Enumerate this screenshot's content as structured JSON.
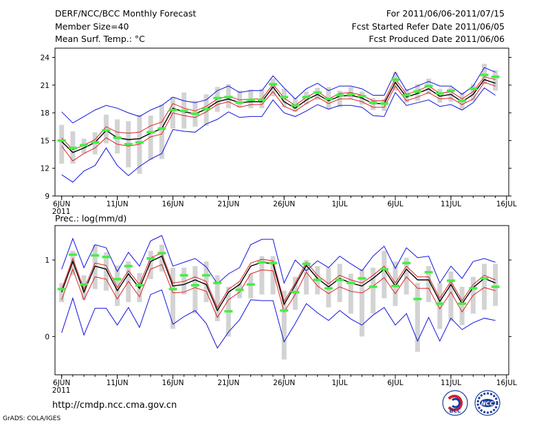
{
  "header": {
    "title": "DERF/NCC/BCC Monthly Forecast",
    "member_size": "Member Size=40",
    "variable": "Mean Surf. Temp.: °C",
    "forecast_period": "For 2011/06/06-2011/07/15",
    "refer_date": "Fcst Started Refer Date 2011/06/05",
    "produced_date": "Fcst Produced Date 2011/06/06"
  },
  "colors": {
    "box": "#d3d3d3",
    "median": "#44ee44",
    "mean": "#000000",
    "inner_band": "#dd2222",
    "outer_band": "#1111dd",
    "frame": "#000000"
  },
  "footer": {
    "url": "http://cmdp.ncc.cma.gov.cn",
    "credit": "GrADS: COLA/IGES",
    "logo_left_text": "BCC",
    "logo_right_text": "NCC"
  },
  "chart_data": [
    {
      "type": "line",
      "title": "Mean Surf. Temp.: °C",
      "ylim": [
        9,
        25
      ],
      "yticks": [
        9,
        12,
        15,
        18,
        21,
        24
      ],
      "xticks": [
        {
          "day": 0,
          "label": "6JUN",
          "sub": "2011"
        },
        {
          "day": 5,
          "label": "11JUN"
        },
        {
          "day": 10,
          "label": "16JUN"
        },
        {
          "day": 15,
          "label": "21JUN"
        },
        {
          "day": 20,
          "label": "26JUN"
        },
        {
          "day": 25,
          "label": "1JUL"
        },
        {
          "day": 30,
          "label": "6JUL"
        },
        {
          "day": 35,
          "label": "11JUL"
        },
        {
          "day": 40,
          "label": "16JUL"
        }
      ],
      "series": [
        {
          "name": "upper",
          "values": [
            18.1,
            16.9,
            17.6,
            18.3,
            18.8,
            18.5,
            18.0,
            17.6,
            18.3,
            18.8,
            19.7,
            19.3,
            19.1,
            19.4,
            20.4,
            20.9,
            20.2,
            20.4,
            20.4,
            22.0,
            20.7,
            19.5,
            20.6,
            21.2,
            20.4,
            20.9,
            20.9,
            20.6,
            19.9,
            19.9,
            22.4,
            20.4,
            20.9,
            21.4,
            20.9,
            20.9,
            20.0,
            20.9,
            22.9,
            22.4
          ]
        },
        {
          "name": "inner_upper",
          "values": [
            15.3,
            14.0,
            14.5,
            15.1,
            16.5,
            15.9,
            15.8,
            15.9,
            16.6,
            17.0,
            19.0,
            18.5,
            18.2,
            18.7,
            19.5,
            19.8,
            19.4,
            19.5,
            19.5,
            21.1,
            19.6,
            18.8,
            19.7,
            20.3,
            19.5,
            20.1,
            20.2,
            19.9,
            19.3,
            19.3,
            21.7,
            20.0,
            20.4,
            20.9,
            20.1,
            20.3,
            19.5,
            20.3,
            21.9,
            21.6
          ]
        },
        {
          "name": "mean",
          "values": [
            14.9,
            13.7,
            14.2,
            14.8,
            16.1,
            15.3,
            15.1,
            15.2,
            15.8,
            16.3,
            18.5,
            18.1,
            17.9,
            18.4,
            19.2,
            19.5,
            19.1,
            19.2,
            19.2,
            20.8,
            19.2,
            18.5,
            19.4,
            20.0,
            19.3,
            19.8,
            19.9,
            19.6,
            19.0,
            19.0,
            21.3,
            19.7,
            20.1,
            20.6,
            19.8,
            20.0,
            19.2,
            20.0,
            21.6,
            21.2
          ]
        },
        {
          "name": "inner_lower",
          "values": [
            14.4,
            12.8,
            13.6,
            14.2,
            15.3,
            14.6,
            14.4,
            14.6,
            15.4,
            15.7,
            18.0,
            17.7,
            17.5,
            18.1,
            18.9,
            19.2,
            18.6,
            18.9,
            18.9,
            20.3,
            18.7,
            18.2,
            19.0,
            19.7,
            19.0,
            19.5,
            19.5,
            19.2,
            18.6,
            18.6,
            20.9,
            19.3,
            19.7,
            20.2,
            19.5,
            19.6,
            18.9,
            19.5,
            21.3,
            20.9
          ]
        },
        {
          "name": "lower",
          "values": [
            11.3,
            10.5,
            11.7,
            12.3,
            14.2,
            12.3,
            11.2,
            12.2,
            13.0,
            13.6,
            16.2,
            16.0,
            15.9,
            16.8,
            17.3,
            18.1,
            17.5,
            17.6,
            17.6,
            19.4,
            18.0,
            17.6,
            18.2,
            18.9,
            18.4,
            18.8,
            18.8,
            18.6,
            17.7,
            17.6,
            20.2,
            18.8,
            19.1,
            19.4,
            18.7,
            18.9,
            18.3,
            19.1,
            20.7,
            19.9
          ]
        }
      ],
      "median": [
        15.0,
        14.2,
        14.5,
        14.8,
        16.1,
        15.3,
        14.6,
        14.8,
        15.9,
        16.3,
        18.3,
        18.2,
        17.9,
        18.4,
        19.6,
        19.7,
        19.1,
        19.4,
        19.4,
        21.1,
        19.7,
        18.8,
        19.7,
        20.2,
        19.5,
        19.9,
        20.0,
        19.8,
        19.1,
        19.0,
        21.6,
        19.9,
        20.3,
        20.9,
        20.1,
        20.4,
        19.3,
        20.6,
        22.1,
        21.9
      ],
      "boxes": [
        [
          12.5,
          16.7
        ],
        [
          12.5,
          16.0
        ],
        [
          13.6,
          15.2
        ],
        [
          13.5,
          15.9
        ],
        [
          14.7,
          17.8
        ],
        [
          13.6,
          17.3
        ],
        [
          12.1,
          17.1
        ],
        [
          11.4,
          17.8
        ],
        [
          12.9,
          17.7
        ],
        [
          13.0,
          18.9
        ],
        [
          16.3,
          19.7
        ],
        [
          16.3,
          20.2
        ],
        [
          16.5,
          19.3
        ],
        [
          16.6,
          20.0
        ],
        [
          18.1,
          20.8
        ],
        [
          18.5,
          21.1
        ],
        [
          18.6,
          20.4
        ],
        [
          18.5,
          20.5
        ],
        [
          18.5,
          20.6
        ],
        [
          19.8,
          21.7
        ],
        [
          18.6,
          20.6
        ],
        [
          18.1,
          19.6
        ],
        [
          18.9,
          20.3
        ],
        [
          19.4,
          20.7
        ],
        [
          18.4,
          20.8
        ],
        [
          18.6,
          20.4
        ],
        [
          19.5,
          20.8
        ],
        [
          18.9,
          20.3
        ],
        [
          18.3,
          19.6
        ],
        [
          18.2,
          19.5
        ],
        [
          20.4,
          22.4
        ],
        [
          19.1,
          20.6
        ],
        [
          19.3,
          21.1
        ],
        [
          20.0,
          21.7
        ],
        [
          19.1,
          20.6
        ],
        [
          19.2,
          20.8
        ],
        [
          18.4,
          20.2
        ],
        [
          19.3,
          21.1
        ],
        [
          21.1,
          23.3
        ],
        [
          20.4,
          22.6
        ]
      ]
    },
    {
      "type": "line",
      "title": "Prec.: log(mm/d)",
      "ylim": [
        -0.5,
        1.45
      ],
      "yticks": [
        0,
        1
      ],
      "xticks": [
        {
          "day": 0,
          "label": "6JUN",
          "sub": "2011"
        },
        {
          "day": 5,
          "label": "11JUN"
        },
        {
          "day": 10,
          "label": "16JUN"
        },
        {
          "day": 15,
          "label": "21JUN"
        },
        {
          "day": 20,
          "label": "26JUN"
        },
        {
          "day": 25,
          "label": "1JUL"
        },
        {
          "day": 30,
          "label": "6JUL"
        },
        {
          "day": 35,
          "label": "11JUL"
        },
        {
          "day": 40,
          "label": "16JUL"
        }
      ],
      "series": [
        {
          "name": "upper",
          "values": [
            0.88,
            1.28,
            0.9,
            1.2,
            1.16,
            0.85,
            1.1,
            0.92,
            1.25,
            1.32,
            0.92,
            0.97,
            1.02,
            0.91,
            0.69,
            0.82,
            0.9,
            1.2,
            1.27,
            1.27,
            0.7,
            1.0,
            0.86,
            0.99,
            0.9,
            1.05,
            0.95,
            0.86,
            1.05,
            1.18,
            0.89,
            1.16,
            1.03,
            1.05,
            0.7,
            0.92,
            0.76,
            0.98,
            1.02,
            0.97
          ]
        },
        {
          "name": "inner_upper",
          "values": [
            0.62,
            1.02,
            0.62,
            0.96,
            0.93,
            0.64,
            0.86,
            0.68,
            1.03,
            1.09,
            0.7,
            0.72,
            0.78,
            0.72,
            0.38,
            0.62,
            0.72,
            0.96,
            1.01,
            0.99,
            0.46,
            0.7,
            0.97,
            0.8,
            0.69,
            0.8,
            0.74,
            0.7,
            0.8,
            0.92,
            0.7,
            0.92,
            0.78,
            0.78,
            0.5,
            0.72,
            0.47,
            0.68,
            0.8,
            0.74
          ]
        },
        {
          "name": "mean",
          "values": [
            0.58,
            0.98,
            0.58,
            0.92,
            0.88,
            0.6,
            0.82,
            0.63,
            0.98,
            1.05,
            0.66,
            0.68,
            0.74,
            0.68,
            0.34,
            0.58,
            0.68,
            0.92,
            0.97,
            0.95,
            0.42,
            0.67,
            0.93,
            0.76,
            0.65,
            0.76,
            0.7,
            0.66,
            0.76,
            0.88,
            0.66,
            0.88,
            0.74,
            0.74,
            0.46,
            0.68,
            0.43,
            0.64,
            0.76,
            0.7
          ]
        },
        {
          "name": "inner_lower",
          "values": [
            0.48,
            0.88,
            0.48,
            0.78,
            0.75,
            0.49,
            0.72,
            0.52,
            0.88,
            0.94,
            0.57,
            0.58,
            0.64,
            0.59,
            0.25,
            0.48,
            0.58,
            0.82,
            0.87,
            0.86,
            0.32,
            0.55,
            0.84,
            0.66,
            0.56,
            0.65,
            0.59,
            0.57,
            0.66,
            0.77,
            0.56,
            0.78,
            0.63,
            0.63,
            0.36,
            0.58,
            0.32,
            0.54,
            0.64,
            0.6
          ]
        },
        {
          "name": "lower",
          "values": [
            0.05,
            0.5,
            0.02,
            0.37,
            0.37,
            0.15,
            0.38,
            0.12,
            0.55,
            0.61,
            0.16,
            0.26,
            0.34,
            0.17,
            -0.15,
            0.06,
            0.22,
            0.48,
            0.47,
            0.47,
            -0.07,
            0.17,
            0.43,
            0.31,
            0.21,
            0.34,
            0.23,
            0.15,
            0.28,
            0.38,
            0.15,
            0.3,
            -0.06,
            0.25,
            -0.06,
            0.24,
            0.09,
            0.18,
            0.24,
            0.21
          ]
        }
      ],
      "median": [
        0.62,
        1.07,
        0.68,
        1.06,
        1.04,
        0.75,
        0.92,
        0.67,
        1.02,
        1.09,
        0.62,
        0.8,
        0.67,
        0.8,
        0.7,
        0.33,
        0.61,
        0.68,
        0.97,
        0.96,
        0.34,
        0.58,
        0.95,
        0.74,
        0.63,
        0.74,
        0.7,
        0.76,
        0.65,
        0.88,
        0.66,
        0.96,
        0.49,
        0.84,
        0.43,
        0.73,
        0.43,
        0.63,
        0.76,
        0.65
      ],
      "boxes": [
        [
          0.45,
          0.7
        ],
        [
          0.8,
          1.12
        ],
        [
          0.48,
          0.8
        ],
        [
          0.62,
          1.2
        ],
        [
          0.6,
          1.1
        ],
        [
          0.4,
          0.93
        ],
        [
          0.45,
          0.98
        ],
        [
          0.45,
          0.83
        ],
        [
          0.75,
          1.12
        ],
        [
          0.85,
          1.2
        ],
        [
          0.1,
          0.9
        ],
        [
          0.55,
          0.9
        ],
        [
          0.3,
          0.92
        ],
        [
          0.45,
          0.98
        ],
        [
          0.2,
          0.8
        ],
        [
          0.0,
          0.65
        ],
        [
          0.5,
          0.7
        ],
        [
          0.5,
          0.82
        ],
        [
          0.55,
          1.05
        ],
        [
          0.55,
          1.05
        ],
        [
          -0.3,
          0.6
        ],
        [
          0.35,
          0.78
        ],
        [
          0.55,
          1.0
        ],
        [
          0.55,
          0.92
        ],
        [
          0.38,
          0.9
        ],
        [
          0.45,
          0.95
        ],
        [
          0.3,
          0.82
        ],
        [
          0.0,
          0.88
        ],
        [
          0.3,
          0.9
        ],
        [
          0.5,
          1.12
        ],
        [
          0.4,
          0.98
        ],
        [
          0.55,
          1.03
        ],
        [
          -0.2,
          0.7
        ],
        [
          0.45,
          0.92
        ],
        [
          0.1,
          0.7
        ],
        [
          0.2,
          0.85
        ],
        [
          0.15,
          0.65
        ],
        [
          0.3,
          0.78
        ],
        [
          0.35,
          0.95
        ],
        [
          0.4,
          0.95
        ]
      ]
    }
  ]
}
